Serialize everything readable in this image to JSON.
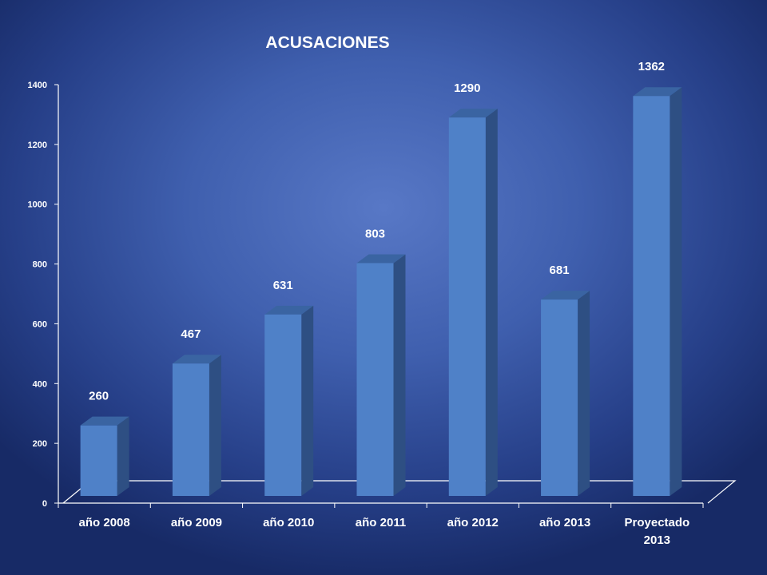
{
  "chart_data": {
    "type": "bar",
    "title": "ACUSACIONES",
    "categories": [
      "año 2008",
      "año 2009",
      "año 2010",
      "año 2011",
      "año 2012",
      "año 2013",
      "Proyectado 2013"
    ],
    "values": [
      260,
      467,
      631,
      803,
      1290,
      681,
      1362
    ],
    "yticks": [
      "0",
      "200",
      "400",
      "600",
      "800",
      "1000",
      "1200",
      "1400"
    ],
    "ylim": [
      0,
      1400
    ],
    "grid": false,
    "legend": "none",
    "style": "3d-column",
    "colors": {
      "bar_front": "#4f81c8",
      "bar_top": "#3a64a2",
      "bar_side": "#2e4f83",
      "axis": "#ffffff",
      "text": "#ffffff"
    }
  }
}
